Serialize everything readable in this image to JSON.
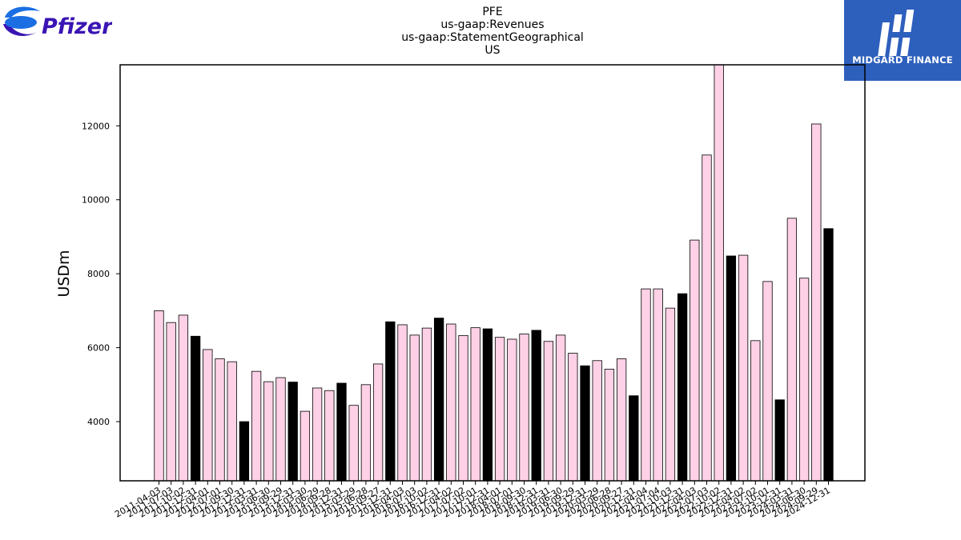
{
  "logos": {
    "left_wordmark": "Pfizer",
    "right_text": "MIDGARD FINANCE"
  },
  "colors": {
    "bar_pink": "#ffd1e6",
    "bar_black": "#000000",
    "pfizer_blue": "#1b6fe3",
    "pfizer_purple": "#3a14b4",
    "midgard_blue": "#2d5fbd"
  },
  "chart_data": {
    "type": "bar",
    "title_lines": [
      "PFE",
      "us-gaap:Revenues",
      "us-gaap:StatementGeographical",
      "US"
    ],
    "xlabel": "",
    "ylabel": "USDm",
    "ylim": [
      2400,
      13650
    ],
    "yticks": [
      4000,
      6000,
      8000,
      10000,
      12000
    ],
    "categories": [
      "2011-04-03",
      "2011-07-03",
      "2011-10-02",
      "2011-12-31",
      "2012-04-01",
      "2012-07-01",
      "2012-09-30",
      "2012-12-31",
      "2013-03-31",
      "2013-06-30",
      "2013-09-29",
      "2013-12-31",
      "2014-03-30",
      "2014-06-29",
      "2014-09-28",
      "2014-12-31",
      "2015-03-29",
      "2015-06-28",
      "2015-09-27",
      "2015-12-31",
      "2016-04-03",
      "2016-07-03",
      "2016-10-02",
      "2016-12-31",
      "2017-04-02",
      "2017-07-02",
      "2017-10-01",
      "2017-12-31",
      "2018-04-01",
      "2018-07-01",
      "2018-09-30",
      "2018-12-31",
      "2019-03-31",
      "2019-06-30",
      "2019-09-29",
      "2019-12-31",
      "2020-03-29",
      "2020-06-28",
      "2020-09-27",
      "2020-12-31",
      "2021-04-04",
      "2021-07-04",
      "2021-10-03",
      "2021-12-31",
      "2022-04-03",
      "2022-07-03",
      "2022-10-02",
      "2022-12-31",
      "2023-04-02",
      "2023-07-02",
      "2023-10-01",
      "2023-12-31",
      "2024-03-31",
      "2024-06-30",
      "2024-09-29",
      "2024-12-31"
    ],
    "values": [
      7000,
      6680,
      6880,
      6310,
      5950,
      5700,
      5620,
      4000,
      5360,
      5080,
      5190,
      5070,
      4280,
      4910,
      4840,
      5040,
      4440,
      5000,
      5560,
      6700,
      6620,
      6340,
      6530,
      6800,
      6640,
      6330,
      6540,
      6510,
      6280,
      6230,
      6370,
      6470,
      6170,
      6340,
      5850,
      5510,
      5650,
      5420,
      5700,
      4700,
      7590,
      7590,
      7070,
      7460,
      8910,
      11210,
      13700,
      8480,
      8500,
      6190,
      7790,
      4590,
      9500,
      7880,
      12050,
      9220
    ],
    "annual_flags": [
      false,
      false,
      false,
      true,
      false,
      false,
      false,
      true,
      false,
      false,
      false,
      true,
      false,
      false,
      false,
      true,
      false,
      false,
      false,
      true,
      false,
      false,
      false,
      true,
      false,
      false,
      false,
      true,
      false,
      false,
      false,
      true,
      false,
      false,
      false,
      true,
      false,
      false,
      false,
      true,
      false,
      false,
      false,
      true,
      false,
      false,
      false,
      true,
      false,
      false,
      false,
      true,
      false,
      false,
      false,
      true
    ],
    "grid": false,
    "legend": "none"
  }
}
